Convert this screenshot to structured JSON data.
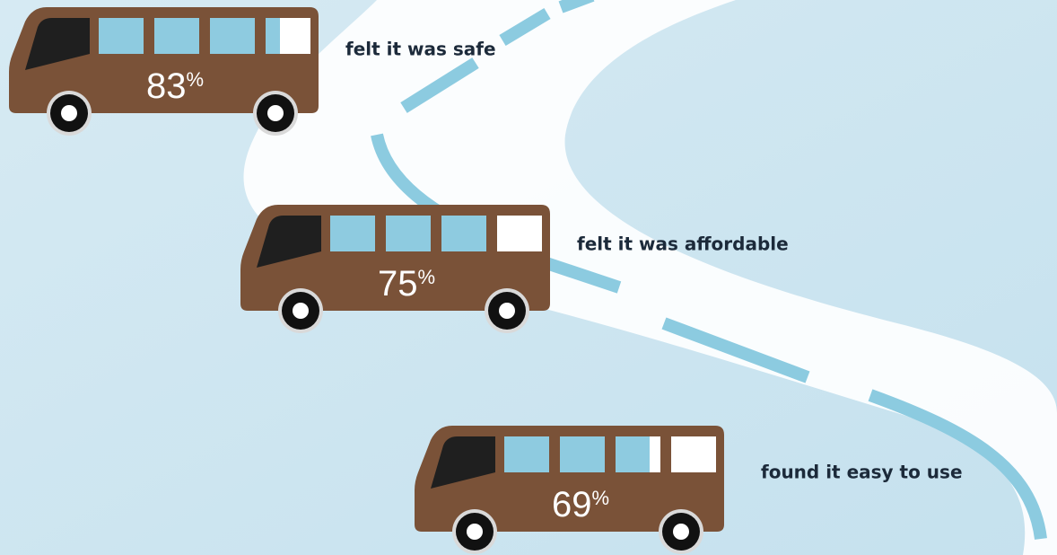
{
  "chart_data": {
    "type": "bus-pictograph",
    "categories": [
      "felt it was safe",
      "felt it was affordable",
      "found it easy to use"
    ],
    "values": [
      83,
      75,
      69
    ],
    "value_labels": [
      "83%",
      "75%",
      "69%"
    ],
    "ylim": [
      0,
      100
    ],
    "color": "#8ecbe0"
  }
}
